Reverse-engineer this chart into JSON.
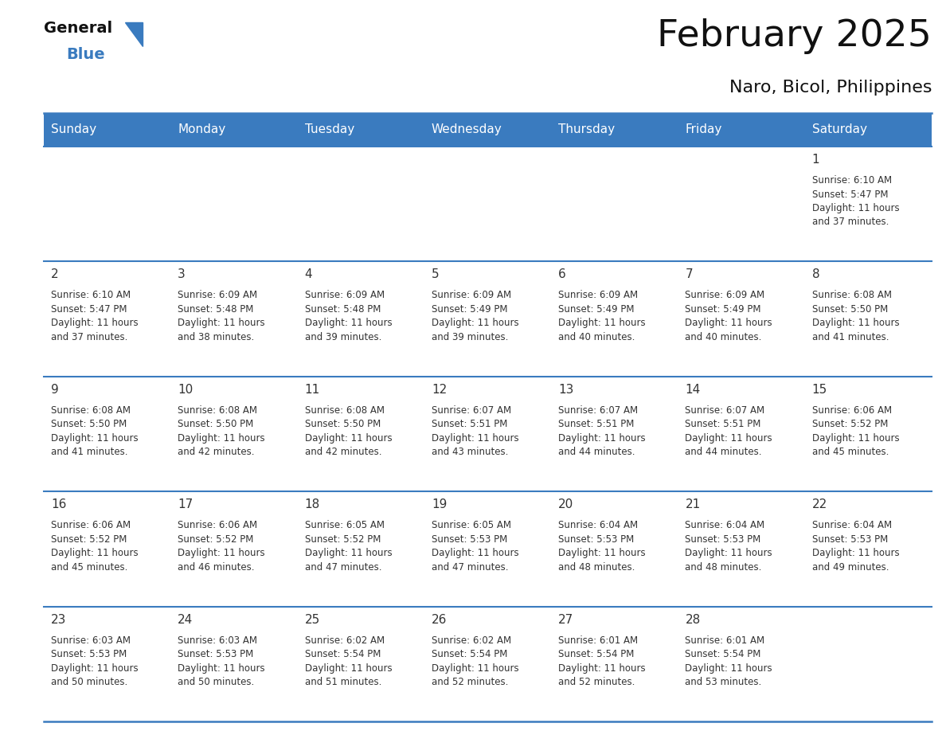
{
  "title": "February 2025",
  "subtitle": "Naro, Bicol, Philippines",
  "header_color": "#3a7bbf",
  "header_text_color": "#ffffff",
  "background_color": "#ffffff",
  "cell_bg": "#ffffff",
  "border_color": "#3a7bbf",
  "text_color": "#333333",
  "days_of_week": [
    "Sunday",
    "Monday",
    "Tuesday",
    "Wednesday",
    "Thursday",
    "Friday",
    "Saturday"
  ],
  "calendar_data": [
    [
      {
        "day": null,
        "sunrise": null,
        "sunset": null,
        "daylight": null
      },
      {
        "day": null,
        "sunrise": null,
        "sunset": null,
        "daylight": null
      },
      {
        "day": null,
        "sunrise": null,
        "sunset": null,
        "daylight": null
      },
      {
        "day": null,
        "sunrise": null,
        "sunset": null,
        "daylight": null
      },
      {
        "day": null,
        "sunrise": null,
        "sunset": null,
        "daylight": null
      },
      {
        "day": null,
        "sunrise": null,
        "sunset": null,
        "daylight": null
      },
      {
        "day": 1,
        "sunrise": "6:10 AM",
        "sunset": "5:47 PM",
        "daylight": "11 hours and 37 minutes."
      }
    ],
    [
      {
        "day": 2,
        "sunrise": "6:10 AM",
        "sunset": "5:47 PM",
        "daylight": "11 hours and 37 minutes."
      },
      {
        "day": 3,
        "sunrise": "6:09 AM",
        "sunset": "5:48 PM",
        "daylight": "11 hours and 38 minutes."
      },
      {
        "day": 4,
        "sunrise": "6:09 AM",
        "sunset": "5:48 PM",
        "daylight": "11 hours and 39 minutes."
      },
      {
        "day": 5,
        "sunrise": "6:09 AM",
        "sunset": "5:49 PM",
        "daylight": "11 hours and 39 minutes."
      },
      {
        "day": 6,
        "sunrise": "6:09 AM",
        "sunset": "5:49 PM",
        "daylight": "11 hours and 40 minutes."
      },
      {
        "day": 7,
        "sunrise": "6:09 AM",
        "sunset": "5:49 PM",
        "daylight": "11 hours and 40 minutes."
      },
      {
        "day": 8,
        "sunrise": "6:08 AM",
        "sunset": "5:50 PM",
        "daylight": "11 hours and 41 minutes."
      }
    ],
    [
      {
        "day": 9,
        "sunrise": "6:08 AM",
        "sunset": "5:50 PM",
        "daylight": "11 hours and 41 minutes."
      },
      {
        "day": 10,
        "sunrise": "6:08 AM",
        "sunset": "5:50 PM",
        "daylight": "11 hours and 42 minutes."
      },
      {
        "day": 11,
        "sunrise": "6:08 AM",
        "sunset": "5:50 PM",
        "daylight": "11 hours and 42 minutes."
      },
      {
        "day": 12,
        "sunrise": "6:07 AM",
        "sunset": "5:51 PM",
        "daylight": "11 hours and 43 minutes."
      },
      {
        "day": 13,
        "sunrise": "6:07 AM",
        "sunset": "5:51 PM",
        "daylight": "11 hours and 44 minutes."
      },
      {
        "day": 14,
        "sunrise": "6:07 AM",
        "sunset": "5:51 PM",
        "daylight": "11 hours and 44 minutes."
      },
      {
        "day": 15,
        "sunrise": "6:06 AM",
        "sunset": "5:52 PM",
        "daylight": "11 hours and 45 minutes."
      }
    ],
    [
      {
        "day": 16,
        "sunrise": "6:06 AM",
        "sunset": "5:52 PM",
        "daylight": "11 hours and 45 minutes."
      },
      {
        "day": 17,
        "sunrise": "6:06 AM",
        "sunset": "5:52 PM",
        "daylight": "11 hours and 46 minutes."
      },
      {
        "day": 18,
        "sunrise": "6:05 AM",
        "sunset": "5:52 PM",
        "daylight": "11 hours and 47 minutes."
      },
      {
        "day": 19,
        "sunrise": "6:05 AM",
        "sunset": "5:53 PM",
        "daylight": "11 hours and 47 minutes."
      },
      {
        "day": 20,
        "sunrise": "6:04 AM",
        "sunset": "5:53 PM",
        "daylight": "11 hours and 48 minutes."
      },
      {
        "day": 21,
        "sunrise": "6:04 AM",
        "sunset": "5:53 PM",
        "daylight": "11 hours and 48 minutes."
      },
      {
        "day": 22,
        "sunrise": "6:04 AM",
        "sunset": "5:53 PM",
        "daylight": "11 hours and 49 minutes."
      }
    ],
    [
      {
        "day": 23,
        "sunrise": "6:03 AM",
        "sunset": "5:53 PM",
        "daylight": "11 hours and 50 minutes."
      },
      {
        "day": 24,
        "sunrise": "6:03 AM",
        "sunset": "5:53 PM",
        "daylight": "11 hours and 50 minutes."
      },
      {
        "day": 25,
        "sunrise": "6:02 AM",
        "sunset": "5:54 PM",
        "daylight": "11 hours and 51 minutes."
      },
      {
        "day": 26,
        "sunrise": "6:02 AM",
        "sunset": "5:54 PM",
        "daylight": "11 hours and 52 minutes."
      },
      {
        "day": 27,
        "sunrise": "6:01 AM",
        "sunset": "5:54 PM",
        "daylight": "11 hours and 52 minutes."
      },
      {
        "day": 28,
        "sunrise": "6:01 AM",
        "sunset": "5:54 PM",
        "daylight": "11 hours and 53 minutes."
      },
      {
        "day": null,
        "sunrise": null,
        "sunset": null,
        "daylight": null
      }
    ]
  ]
}
